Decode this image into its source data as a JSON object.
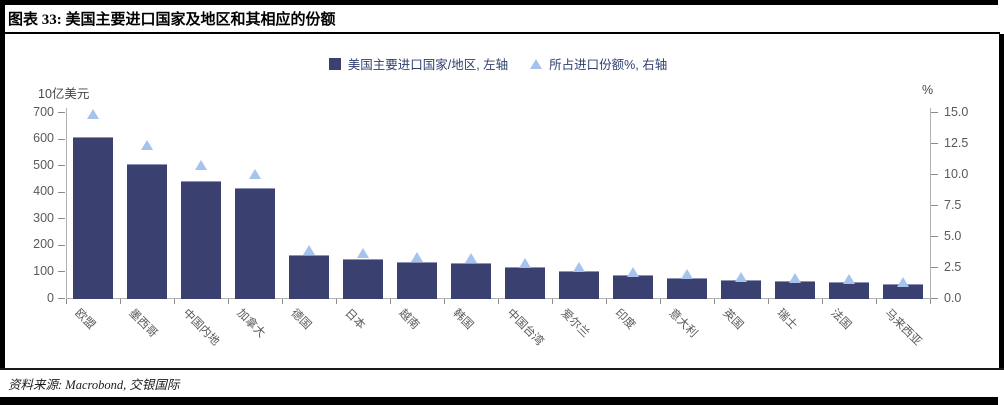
{
  "header": {
    "title": "图表 33: 美国主要进口国家及地区和其相应的份额"
  },
  "legend": [
    {
      "marker": "square",
      "label": "美国主要进口国家/地区, 左轴"
    },
    {
      "marker": "triangle",
      "label": "所占进口份额%, 右轴"
    }
  ],
  "footer": {
    "source": "资料来源: Macrobond, 交银国际"
  },
  "chart_data": {
    "type": "bar",
    "title": "美国主要进口国家及地区和其相应的份额",
    "categories": [
      "欧盟",
      "墨西哥",
      "中国内地",
      "加拿大",
      "德国",
      "日本",
      "越南",
      "韩国",
      "中国台湾",
      "爱尔兰",
      "印度",
      "意大利",
      "英国",
      "瑞士",
      "法国",
      "马来西亚"
    ],
    "series": [
      {
        "name": "美国主要进口国家/地区, 左轴",
        "type": "bar",
        "axis": "left",
        "values": [
          605,
          506,
          439,
          413,
          160,
          148,
          137,
          132,
          116,
          103,
          87,
          76,
          68,
          63,
          60,
          53
        ]
      },
      {
        "name": "所占进口份额%, 右轴",
        "type": "scatter",
        "marker": "triangle",
        "axis": "right",
        "values": [
          14.8,
          12.3,
          10.7,
          10.0,
          3.9,
          3.6,
          3.3,
          3.2,
          2.8,
          2.5,
          2.1,
          1.9,
          1.7,
          1.6,
          1.5,
          1.3
        ]
      }
    ],
    "left_axis": {
      "label": "10亿美元",
      "range": [
        0,
        700
      ],
      "ticks": [
        "0",
        "100",
        "200",
        "300",
        "400",
        "500",
        "600",
        "700"
      ]
    },
    "right_axis": {
      "label": "%",
      "range": [
        0,
        15
      ],
      "ticks": [
        "0.0",
        "2.5",
        "5.0",
        "7.5",
        "10.0",
        "12.5",
        "15.0"
      ]
    },
    "legend_position": "top",
    "grid": false,
    "colors": {
      "bar": "#3a4170",
      "triangle": "#a6c3ee",
      "axis_line": "#b3b3b3",
      "tick_text": "#595959",
      "legend_text": "#2f3f6e"
    }
  }
}
